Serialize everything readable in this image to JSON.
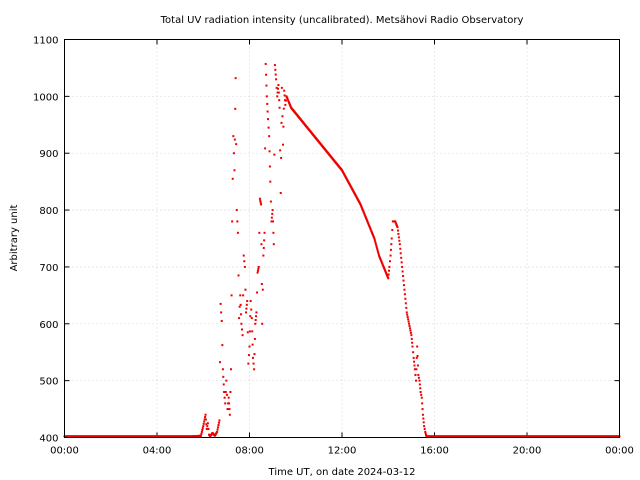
{
  "chart_data": {
    "type": "scatter",
    "title": "Total UV radiation intensity (uncalibrated). Metsähovi Radio Observatory",
    "xlabel": "Time UT, on date 2024-03-12",
    "ylabel": "Arbitrary unit",
    "xlim": [
      0,
      24
    ],
    "ylim": [
      400,
      1100
    ],
    "x_ticks": [
      0,
      4,
      8,
      12,
      16,
      20,
      24
    ],
    "x_tick_labels": [
      "00:00",
      "04:00",
      "08:00",
      "12:00",
      "16:00",
      "20:00",
      "00:00"
    ],
    "y_ticks": [
      400,
      500,
      600,
      700,
      800,
      900,
      1000,
      1100
    ],
    "y_tick_labels": [
      "400",
      "500",
      "600",
      "700",
      "800",
      "900",
      "1000",
      "1100"
    ],
    "grid": true,
    "point_color": "#ee0000",
    "series": [
      {
        "x": [
          0.0,
          0.5,
          1.0,
          1.5,
          2.0,
          2.5,
          3.0,
          3.5,
          4.0,
          4.5,
          5.0,
          5.5,
          5.9,
          6.0,
          6.1,
          6.15,
          6.2,
          6.25,
          6.3,
          6.4,
          6.5,
          6.6,
          6.7,
          6.75,
          6.8,
          6.85,
          6.9,
          6.95,
          7.0,
          7.05,
          7.1,
          7.15,
          7.2,
          7.25,
          7.3,
          7.35,
          7.4,
          7.45,
          7.5,
          7.55,
          7.6,
          7.65,
          7.7,
          7.75,
          7.8,
          7.85,
          7.9,
          7.95,
          8.0,
          8.05,
          8.1,
          8.15,
          8.2,
          8.25,
          8.3,
          8.35,
          8.4,
          8.45,
          8.5,
          8.55,
          8.6,
          8.65,
          8.7,
          8.75,
          8.8,
          8.85,
          8.9,
          8.95,
          9.0,
          9.05,
          9.1,
          9.15,
          9.2,
          9.25,
          9.3,
          9.35,
          9.4,
          9.45,
          9.5,
          9.55,
          9.6,
          9.65,
          9.7,
          9.75,
          9.8,
          9.9,
          10.0,
          10.2,
          10.4,
          10.6,
          10.8,
          11.0,
          11.2,
          11.4,
          11.6,
          11.8,
          12.0,
          12.2,
          12.4,
          12.6,
          12.8,
          13.0,
          13.2,
          13.4,
          13.6,
          13.8,
          13.9,
          14.0,
          14.05,
          14.1,
          14.15,
          14.2,
          14.3,
          14.4,
          14.5,
          14.6,
          14.7,
          14.8,
          14.9,
          15.0,
          15.05,
          15.1,
          15.15,
          15.2,
          15.25,
          15.3,
          15.35,
          15.4,
          15.45,
          15.5,
          15.55,
          15.6,
          15.65,
          15.7,
          15.8,
          16.0,
          16.5,
          17.0,
          17.5,
          18.0,
          18.5,
          19.0,
          19.5,
          20.0,
          20.5,
          21.0,
          21.5,
          22.0,
          22.5,
          23.0,
          23.5,
          24.0
        ],
        "y": [
          402,
          402,
          402,
          402,
          402,
          402,
          402,
          402,
          402,
          402,
          402,
          402,
          403,
          420,
          440,
          415,
          425,
          405,
          402,
          408,
          403,
          410,
          430,
          635,
          605,
          520,
          480,
          460,
          500,
          450,
          470,
          440,
          520,
          780,
          930,
          870,
          1032,
          800,
          760,
          610,
          650,
          600,
          580,
          720,
          700,
          620,
          640,
          530,
          560,
          640,
          610,
          540,
          520,
          600,
          620,
          690,
          700,
          820,
          810,
          600,
          720,
          760,
          1057,
          1000,
          960,
          930,
          850,
          780,
          800,
          740,
          1055,
          1030,
          1000,
          1020,
          980,
          830,
          1015,
          915,
          1010,
          985,
          1000,
          995,
          990,
          985,
          980,
          975,
          970,
          960,
          950,
          940,
          930,
          920,
          910,
          900,
          890,
          880,
          870,
          855,
          840,
          825,
          810,
          790,
          770,
          750,
          720,
          700,
          690,
          680,
          700,
          720,
          750,
          780,
          780,
          770,
          740,
          700,
          660,
          620,
          600,
          580,
          560,
          540,
          520,
          500,
          560,
          510,
          500,
          480,
          470,
          440,
          420,
          410,
          402,
          402,
          402,
          402,
          402,
          402,
          402,
          402,
          402,
          402,
          402,
          402,
          402,
          402,
          402,
          402,
          402,
          402,
          402,
          402
        ]
      }
    ]
  }
}
